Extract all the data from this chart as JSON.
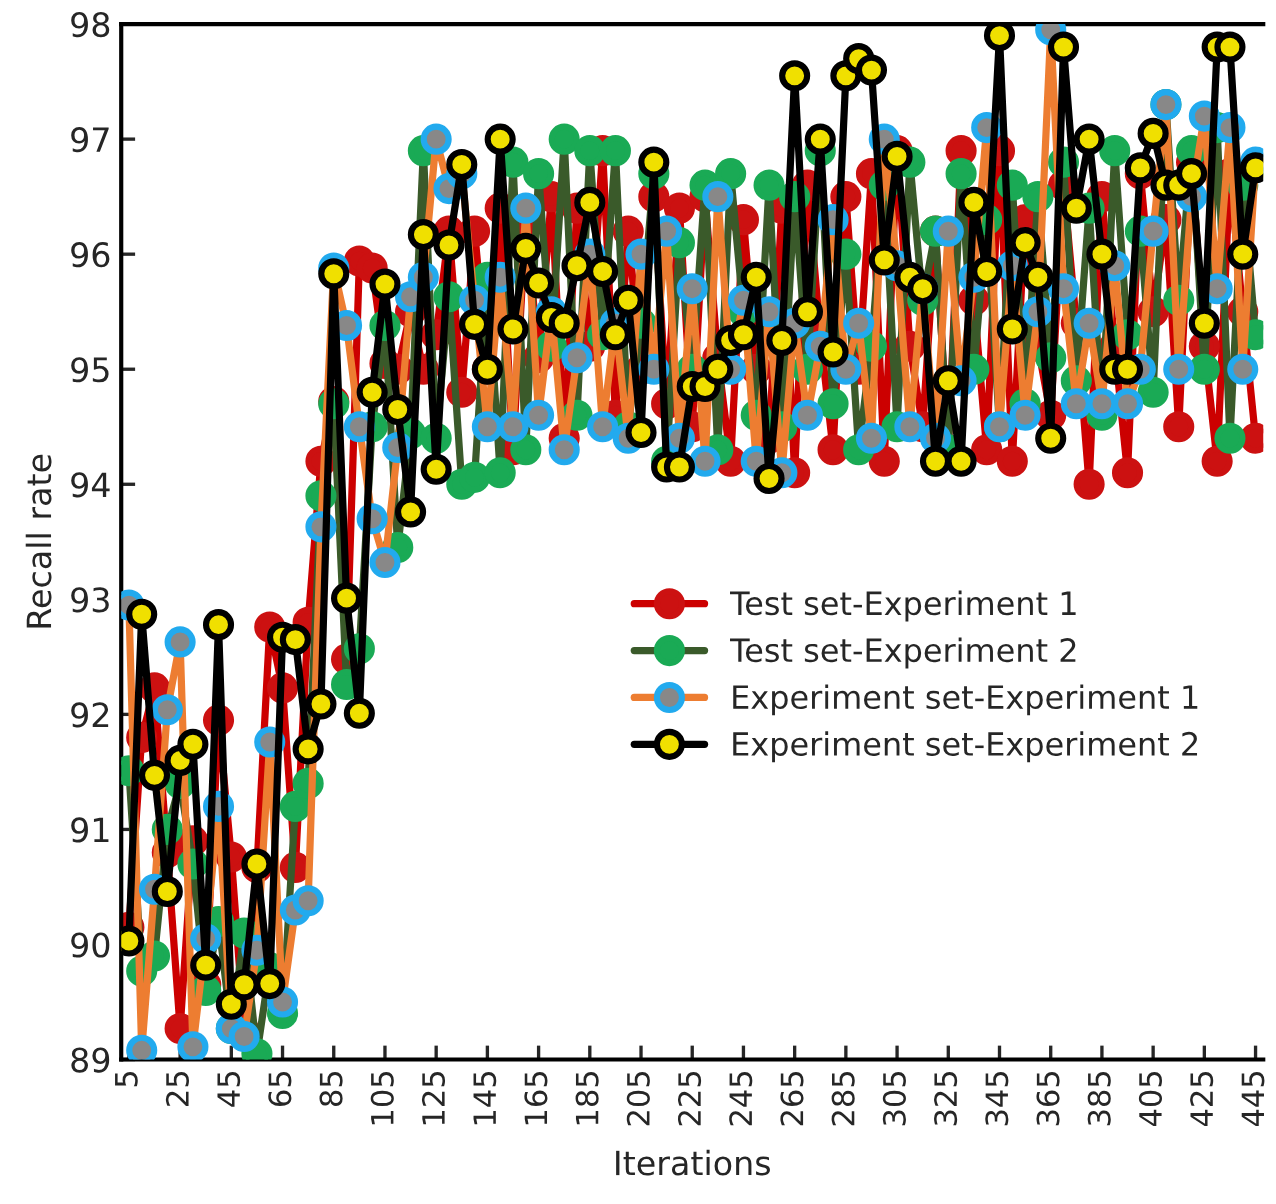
{
  "chart_data": {
    "type": "line",
    "xlabel": "Iterations",
    "ylabel": "Recall rate",
    "x": [
      5,
      10,
      15,
      20,
      25,
      30,
      35,
      40,
      45,
      50,
      55,
      60,
      65,
      70,
      75,
      80,
      85,
      90,
      95,
      100,
      105,
      110,
      115,
      120,
      125,
      130,
      135,
      140,
      145,
      150,
      155,
      160,
      165,
      170,
      175,
      180,
      185,
      190,
      195,
      200,
      205,
      210,
      215,
      220,
      225,
      230,
      235,
      240,
      245,
      250,
      255,
      260,
      265,
      270,
      275,
      280,
      285,
      290,
      295,
      300,
      305,
      310,
      315,
      320,
      325,
      330,
      335,
      340,
      345,
      350,
      355,
      360,
      365,
      370,
      375,
      380,
      385,
      390,
      395,
      400,
      405,
      410,
      415,
      420,
      425,
      430,
      435,
      440,
      445
    ],
    "xlim": [
      2,
      448
    ],
    "xticks": [
      5,
      25,
      45,
      65,
      85,
      105,
      125,
      145,
      165,
      185,
      205,
      225,
      245,
      265,
      285,
      305,
      325,
      345,
      365,
      385,
      405,
      425,
      445
    ],
    "ylim": [
      89,
      98
    ],
    "yticks": [
      89,
      90,
      91,
      92,
      93,
      94,
      95,
      96,
      97,
      98
    ],
    "marker": "circle",
    "line_style": "solid",
    "grid": false,
    "legend": "center right",
    "series": [
      {
        "name": "Test set-Experiment 1",
        "color": "#cc0000",
        "values": [
          90.15,
          91.8,
          92.23,
          90.8,
          89.27,
          90.9,
          89.65,
          91.95,
          90.76,
          89.25,
          90.67,
          92.76,
          92.23,
          90.67,
          92.8,
          94.2,
          94.72,
          92.48,
          95.94,
          95.88,
          95.05,
          95.0,
          95.5,
          95.0,
          95.3,
          96.2,
          94.8,
          96.2,
          95.0,
          96.4,
          94.3,
          96.3,
          95.1,
          96.5,
          94.4,
          96.4,
          95.2,
          96.9,
          94.6,
          96.2,
          95.0,
          96.5,
          94.7,
          96.4,
          94.5,
          96.5,
          95.1,
          94.2,
          96.3,
          95.0,
          94.4,
          96.4,
          94.1,
          96.6,
          95.3,
          94.3,
          96.5,
          95.0,
          96.7,
          94.2,
          96.9,
          95.2,
          94.5,
          96.2,
          94.3,
          96.9,
          95.6,
          94.3,
          96.9,
          94.2,
          96.3,
          95.2,
          94.6,
          96.6,
          95.4,
          94.0,
          96.5,
          95.2,
          94.1,
          96.7,
          95.5,
          96.3,
          94.5,
          96.8,
          95.2,
          94.2,
          96.7,
          95.5,
          94.4
        ]
      },
      {
        "name": "Test set-Experiment 2",
        "color": "#3a5a2a",
        "values": [
          91.51,
          89.77,
          89.9,
          91.0,
          91.4,
          90.7,
          89.6,
          90.2,
          89.27,
          90.1,
          89.05,
          89.8,
          89.4,
          91.2,
          91.4,
          93.9,
          94.7,
          92.26,
          92.57,
          94.5,
          95.38,
          93.45,
          94.44,
          96.9,
          94.4,
          95.63,
          94.0,
          94.06,
          95.8,
          94.1,
          96.8,
          94.3,
          96.7,
          95.2,
          97.0,
          94.6,
          96.9,
          95.3,
          96.9,
          94.5,
          95.4,
          96.7,
          94.2,
          96.1,
          95.0,
          96.6,
          94.3,
          96.7,
          95.5,
          94.6,
          96.6,
          94.5,
          96.5,
          95.0,
          96.9,
          94.7,
          96.0,
          94.3,
          95.2,
          96.6,
          94.5,
          96.8,
          95.6,
          96.2,
          94.3,
          96.7,
          95.0,
          96.3,
          94.5,
          96.6,
          94.7,
          96.5,
          95.1,
          96.8,
          94.9,
          96.4,
          94.6,
          96.9,
          95.3,
          96.2,
          94.8,
          97.3,
          95.6,
          96.9,
          95.0,
          97.1,
          94.4,
          96.6,
          95.3
        ]
      },
      {
        "name": "Experiment set-Experiment 1",
        "color": "#ed7d31",
        "values": [
          92.95,
          89.08,
          90.48,
          92.04,
          92.63,
          89.11,
          90.05,
          91.2,
          89.27,
          89.2,
          89.95,
          91.76,
          89.5,
          90.3,
          90.38,
          93.63,
          95.88,
          95.38,
          94.5,
          93.7,
          93.32,
          94.32,
          95.63,
          95.8,
          97.0,
          96.57,
          96.7,
          95.6,
          94.5,
          95.8,
          94.5,
          96.4,
          94.6,
          95.5,
          94.3,
          95.1,
          96.0,
          94.5,
          95.4,
          94.4,
          96.0,
          95.0,
          96.2,
          94.4,
          95.7,
          94.2,
          96.5,
          95.0,
          95.6,
          94.2,
          95.5,
          94.1,
          95.4,
          94.6,
          95.2,
          96.3,
          95.0,
          95.4,
          94.4,
          97.0,
          95.9,
          94.5,
          95.7,
          94.4,
          96.2,
          94.9,
          95.8,
          97.1,
          94.5,
          95.9,
          94.6,
          95.5,
          97.95,
          95.7,
          94.7,
          95.4,
          94.7,
          95.9,
          94.7,
          95.0,
          96.2,
          97.3,
          95.0,
          96.5,
          97.2,
          95.7,
          97.1,
          95.0,
          96.8
        ]
      },
      {
        "name": "Experiment set-Experiment 2",
        "color": "#000000",
        "values": [
          90.03,
          92.87,
          91.47,
          90.46,
          91.6,
          91.74,
          89.82,
          92.78,
          89.48,
          89.65,
          90.7,
          89.66,
          92.67,
          92.65,
          91.7,
          92.09,
          95.83,
          93.01,
          92.01,
          94.8,
          95.74,
          94.65,
          93.76,
          96.17,
          94.13,
          96.08,
          96.78,
          95.39,
          95.0,
          97.0,
          95.35,
          96.05,
          95.75,
          95.45,
          95.4,
          95.9,
          96.45,
          95.85,
          95.3,
          95.6,
          94.45,
          96.8,
          94.15,
          94.15,
          94.85,
          94.85,
          95.0,
          95.25,
          95.3,
          95.8,
          94.05,
          95.25,
          97.55,
          95.5,
          97.0,
          95.15,
          97.55,
          97.7,
          97.6,
          95.95,
          96.85,
          95.8,
          95.7,
          94.2,
          94.9,
          94.2,
          96.45,
          95.85,
          97.9,
          95.35,
          96.1,
          95.8,
          94.4,
          97.8,
          96.4,
          97.0,
          96.0,
          95.0,
          95.0,
          96.75,
          97.05,
          96.6,
          96.6,
          96.7,
          95.4,
          97.8,
          97.8,
          96.0,
          96.75
        ]
      }
    ]
  }
}
